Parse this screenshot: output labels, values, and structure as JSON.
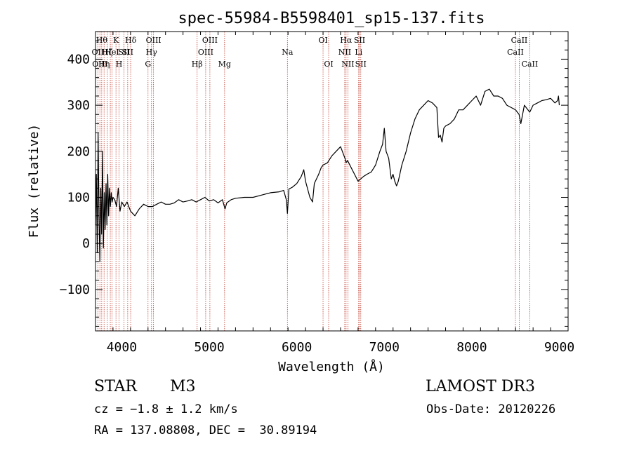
{
  "chart_data": {
    "type": "line",
    "title": "spec-55984-B5598401_sp15-137.fits",
    "xlabel": "Wavelength (Å)",
    "ylabel": "Flux (relative)",
    "xlim": [
      3700,
      9100
    ],
    "ylim": [
      -190,
      460
    ],
    "xticks": [
      4000,
      5000,
      6000,
      7000,
      8000,
      9000
    ],
    "yticks": [
      -100,
      0,
      100,
      200,
      300,
      400
    ],
    "grid": false,
    "line_color": "#000000",
    "marker_color": "#c0392b",
    "series": [
      {
        "x": [
          3700,
          3710,
          3720,
          3730,
          3740,
          3750,
          3760,
          3770,
          3780,
          3790,
          3800,
          3810,
          3820,
          3830,
          3840,
          3850,
          3860,
          3870,
          3880,
          3890,
          3900,
          3920,
          3940,
          3960,
          3980,
          4000,
          4030,
          4060,
          4100,
          4150,
          4200,
          4250,
          4300,
          4350,
          4400,
          4450,
          4500,
          4550,
          4600,
          4650,
          4700,
          4750,
          4800,
          4850,
          4900,
          4950,
          5000,
          5050,
          5100,
          5150,
          5180,
          5200,
          5250,
          5300,
          5400,
          5500,
          5600,
          5700,
          5800,
          5850,
          5880,
          5893,
          5910,
          5950,
          6000,
          6050,
          6080,
          6100,
          6150,
          6180,
          6200,
          6250,
          6280,
          6300,
          6350,
          6400,
          6450,
          6500,
          6550,
          6563,
          6580,
          6620,
          6660,
          6700,
          6730,
          6760,
          6800,
          6850,
          6900,
          6950,
          6980,
          7000,
          7020,
          7050,
          7080,
          7100,
          7120,
          7140,
          7160,
          7200,
          7250,
          7300,
          7350,
          7400,
          7450,
          7500,
          7550,
          7600,
          7620,
          7640,
          7660,
          7680,
          7700,
          7750,
          7800,
          7850,
          7900,
          7950,
          8000,
          8050,
          8100,
          8150,
          8200,
          8250,
          8300,
          8350,
          8400,
          8450,
          8500,
          8540,
          8560,
          8600,
          8662,
          8700,
          8750,
          8800,
          8850,
          8900,
          8950,
          8980,
          8990,
          9000
        ],
        "y": [
          40,
          150,
          -20,
          240,
          60,
          -40,
          120,
          20,
          200,
          -10,
          110,
          30,
          130,
          40,
          150,
          60,
          120,
          80,
          110,
          90,
          100,
          95,
          80,
          120,
          70,
          90,
          80,
          90,
          70,
          60,
          75,
          85,
          80,
          80,
          85,
          90,
          85,
          85,
          88,
          95,
          90,
          92,
          95,
          90,
          95,
          100,
          92,
          95,
          88,
          95,
          75,
          88,
          95,
          98,
          100,
          100,
          105,
          110,
          112,
          115,
          95,
          65,
          118,
          122,
          130,
          145,
          160,
          135,
          100,
          90,
          130,
          150,
          165,
          170,
          175,
          190,
          200,
          210,
          185,
          175,
          180,
          165,
          150,
          135,
          140,
          145,
          150,
          155,
          170,
          200,
          215,
          250,
          200,
          185,
          140,
          150,
          135,
          125,
          135,
          170,
          200,
          240,
          270,
          290,
          300,
          310,
          305,
          295,
          230,
          235,
          220,
          250,
          255,
          260,
          270,
          290,
          290,
          300,
          310,
          320,
          300,
          330,
          335,
          320,
          320,
          315,
          300,
          295,
          290,
          280,
          260,
          300,
          285,
          300,
          305,
          310,
          312,
          315,
          305,
          310,
          320,
          300
        ],
        "line_width": 1.2
      }
    ],
    "line_markers": [
      {
        "x": 3727,
        "label": "OII",
        "row": 1
      },
      {
        "x": 3750,
        "label": "OIII",
        "row": 2
      },
      {
        "x": 3771,
        "label": "Hθ",
        "row": 0
      },
      {
        "x": 3798,
        "label": "Hη",
        "row": 2
      },
      {
        "x": 3835,
        "label": "Hζ",
        "row": 1
      },
      {
        "x": 3869,
        "label": "",
        "row": 0
      },
      {
        "x": 3889,
        "label": "HeI",
        "row": 1
      },
      {
        "x": 3934,
        "label": "K",
        "row": 0
      },
      {
        "x": 3969,
        "label": "H",
        "row": 2
      },
      {
        "x": 4026,
        "label": "SII",
        "row": 1
      },
      {
        "x": 4068,
        "label": "SII",
        "row": 1
      },
      {
        "x": 4102,
        "label": "Hδ",
        "row": 0
      },
      {
        "x": 4300,
        "label": "G",
        "row": 2
      },
      {
        "x": 4340,
        "label": "Hγ",
        "row": 1
      },
      {
        "x": 4363,
        "label": "OIII",
        "row": 0
      },
      {
        "x": 4861,
        "label": "Hβ",
        "row": 2
      },
      {
        "x": 4959,
        "label": "OIII",
        "row": 1
      },
      {
        "x": 5007,
        "label": "OIII",
        "row": 0
      },
      {
        "x": 5175,
        "label": "Mg",
        "row": 2
      },
      {
        "x": 5893,
        "label": "Na",
        "row": 1
      },
      {
        "x": 6300,
        "label": "OI",
        "row": 0
      },
      {
        "x": 6364,
        "label": "OI",
        "row": 2
      },
      {
        "x": 6548,
        "label": "NII",
        "row": 1
      },
      {
        "x": 6563,
        "label": "Hα",
        "row": 0
      },
      {
        "x": 6584,
        "label": "NII",
        "row": 2
      },
      {
        "x": 6707,
        "label": "Li",
        "row": 1
      },
      {
        "x": 6717,
        "label": "SII",
        "row": 0
      },
      {
        "x": 6731,
        "label": "SII",
        "row": 2
      },
      {
        "x": 8498,
        "label": "CaII",
        "row": 1
      },
      {
        "x": 8542,
        "label": "CaII",
        "row": 0
      },
      {
        "x": 8662,
        "label": "CaII",
        "row": 2
      }
    ]
  },
  "info": {
    "object_class": "STAR",
    "subclass": "M3",
    "survey": "LAMOST DR3",
    "cz": "cz = −1.8 ± 1.2 km/s",
    "obs_date": "Obs-Date: 20120226",
    "coords": "RA = 137.08808, DEC =  30.89194"
  }
}
